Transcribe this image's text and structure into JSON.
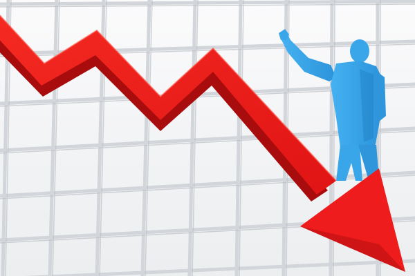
{
  "illustration": {
    "subject": "downward-trend-arrow-with-businessman",
    "colors": {
      "background": "#f4f5f6",
      "grid": "#d3d6da",
      "grid_shadow": "#b9bcc1",
      "arrow": "#ee1c1c",
      "arrow_shade": "#a80c0c",
      "figure": "#3aa6ea",
      "figure_shade": "#1f7fc4"
    }
  }
}
